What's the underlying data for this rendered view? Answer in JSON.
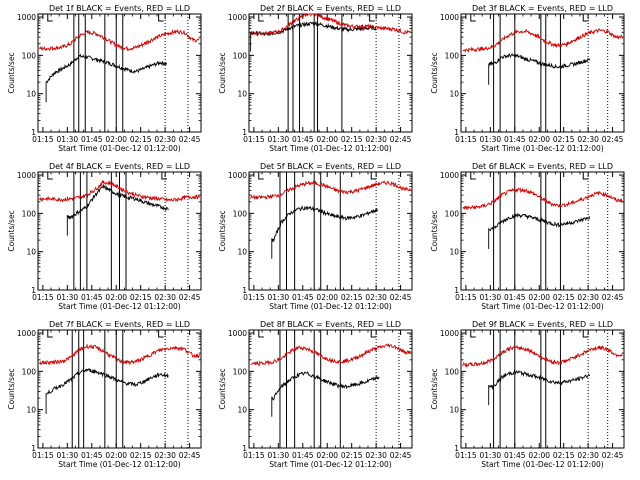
{
  "figure": {
    "colors": {
      "events": "#000000",
      "lld": "#d40000",
      "axes": "#000000",
      "dotted": "#000000"
    }
  },
  "chart_data": [
    {
      "type": "line",
      "panel": "1",
      "title": "Det 1f BLACK = Events, RED = LLD",
      "xlabel": "Start Time (01-Dec-12 01:12:00)",
      "ylabel": "Counts/sec",
      "x_tick_labels": [
        "01:15",
        "01:30",
        "01:45",
        "02:00",
        "02:15",
        "02:30",
        "02:45"
      ],
      "x_ticks_min": [
        3,
        18,
        33,
        48,
        63,
        78,
        93
      ],
      "xlim_min": [
        0,
        100
      ],
      "y_tick_labels": [
        "1",
        "10",
        "100",
        "1000"
      ],
      "yscale": "log",
      "ylim": [
        1,
        1200
      ],
      "time_min": [
        5,
        10,
        15,
        20,
        25,
        30,
        35,
        40,
        45,
        50,
        55,
        60,
        65,
        70,
        75,
        80,
        85,
        90,
        95
      ],
      "series": [
        {
          "name": "Events",
          "color": "#000000",
          "time_min_start": 5,
          "time_min_end": 79,
          "values": [
            20,
            35,
            45,
            60,
            95,
            90,
            80,
            70,
            60,
            50,
            42,
            38,
            45,
            55,
            65,
            60,
            0,
            0,
            0
          ]
        },
        {
          "name": "LLD",
          "color": "#d40000",
          "time_min_start": 1,
          "time_min_end": 99,
          "values": [
            150,
            155,
            165,
            200,
            320,
            400,
            380,
            300,
            220,
            170,
            150,
            160,
            200,
            260,
            320,
            380,
            420,
            400,
            250
          ]
        }
      ],
      "vertical_lines_min": [
        22,
        25,
        29,
        41,
        48,
        52
      ],
      "dotted_lines_min": [
        78,
        92
      ],
      "saa_marks_min": [
        6,
        74
      ]
    },
    {
      "type": "line",
      "panel": "2",
      "title": "Det 2f BLACK = Events, RED = LLD",
      "xlabel": "Start Time (01-Dec-12 01:12:00)",
      "ylabel": "Counts/sec",
      "x_tick_labels": [
        "01:15",
        "01:30",
        "01:45",
        "02:00",
        "02:15",
        "02:30",
        "02:45"
      ],
      "x_ticks_min": [
        3,
        18,
        33,
        48,
        63,
        78,
        93
      ],
      "xlim_min": [
        0,
        100
      ],
      "y_tick_labels": [
        "1",
        "10",
        "100",
        "1000"
      ],
      "yscale": "log",
      "ylim": [
        1,
        1200
      ],
      "time_min": [
        5,
        10,
        15,
        20,
        25,
        30,
        35,
        40,
        45,
        50,
        55,
        60,
        65,
        70,
        75,
        80,
        85,
        90,
        95
      ],
      "series": [
        {
          "name": "Events",
          "color": "#000000",
          "time_min_start": 1,
          "time_min_end": 78,
          "values": [
            380,
            360,
            380,
            420,
            520,
            600,
            650,
            700,
            620,
            560,
            500,
            470,
            480,
            500,
            520,
            500,
            0,
            0,
            0
          ]
        },
        {
          "name": "LLD",
          "color": "#d40000",
          "time_min_start": 1,
          "time_min_end": 99,
          "values": [
            380,
            370,
            390,
            450,
            650,
            900,
            1200,
            1250,
            1000,
            850,
            700,
            600,
            560,
            580,
            560,
            520,
            500,
            480,
            400
          ]
        }
      ],
      "vertical_lines_min": [
        24,
        27,
        31,
        40,
        42,
        57
      ],
      "dotted_lines_min": [
        78,
        92
      ],
      "saa_marks_min": [
        6,
        74
      ]
    },
    {
      "type": "line",
      "panel": "3",
      "title": "Det 3f BLACK = Events, RED = LLD",
      "xlabel": "Start Time (01-Dec-12 01:12:00)",
      "ylabel": "Counts/sec",
      "x_tick_labels": [
        "01:15",
        "01:30",
        "01:45",
        "02:00",
        "02:15",
        "02:30",
        "02:45"
      ],
      "x_ticks_min": [
        3,
        18,
        33,
        48,
        63,
        78,
        93
      ],
      "xlim_min": [
        0,
        100
      ],
      "y_tick_labels": [
        "1",
        "10",
        "100",
        "1000"
      ],
      "yscale": "log",
      "ylim": [
        1,
        1200
      ],
      "time_min": [
        5,
        10,
        15,
        20,
        25,
        30,
        35,
        40,
        45,
        50,
        55,
        60,
        65,
        70,
        75,
        80,
        85,
        90,
        95
      ],
      "series": [
        {
          "name": "Events",
          "color": "#000000",
          "time_min_start": 17,
          "time_min_end": 79,
          "values": [
            0,
            0,
            0,
            60,
            90,
            100,
            95,
            80,
            70,
            60,
            55,
            50,
            55,
            60,
            70,
            80,
            0,
            0,
            0
          ]
        },
        {
          "name": "LLD",
          "color": "#d40000",
          "time_min_start": 1,
          "time_min_end": 99,
          "values": [
            140,
            145,
            150,
            170,
            250,
            350,
            420,
            420,
            350,
            260,
            200,
            180,
            200,
            260,
            330,
            400,
            450,
            420,
            300
          ]
        }
      ],
      "vertical_lines_min": [
        20,
        24,
        33,
        49,
        52,
        61
      ],
      "dotted_lines_min": [
        78,
        90
      ],
      "saa_marks_min": [
        6,
        75
      ]
    },
    {
      "type": "line",
      "panel": "4",
      "title": "Det 4f BLACK = Events, RED = LLD",
      "xlabel": "Start Time (01-Dec-12 01:12:00)",
      "ylabel": "Counts/sec",
      "x_tick_labels": [
        "01:15",
        "01:30",
        "01:45",
        "02:00",
        "02:15",
        "02:30",
        "02:45"
      ],
      "x_ticks_min": [
        3,
        18,
        33,
        48,
        63,
        78,
        93
      ],
      "xlim_min": [
        0,
        100
      ],
      "y_tick_labels": [
        "1",
        "10",
        "100",
        "1000"
      ],
      "yscale": "log",
      "ylim": [
        1,
        1200
      ],
      "time_min": [
        5,
        10,
        15,
        20,
        25,
        30,
        35,
        40,
        45,
        50,
        55,
        60,
        65,
        70,
        75,
        80,
        85,
        90,
        95
      ],
      "series": [
        {
          "name": "Events",
          "color": "#000000",
          "time_min_start": 18,
          "time_min_end": 80,
          "values": [
            0,
            0,
            0,
            80,
            110,
            150,
            300,
            500,
            380,
            300,
            260,
            240,
            200,
            170,
            150,
            130,
            0,
            0,
            0
          ]
        },
        {
          "name": "LLD",
          "color": "#d40000",
          "time_min_start": 1,
          "time_min_end": 99,
          "values": [
            240,
            235,
            230,
            240,
            260,
            300,
            420,
            650,
            600,
            460,
            360,
            300,
            270,
            250,
            240,
            220,
            230,
            260,
            270
          ]
        }
      ],
      "vertical_lines_min": [
        22,
        26,
        30,
        45,
        50,
        54
      ],
      "dotted_lines_min": [
        78,
        92
      ],
      "saa_marks_min": [
        6,
        76
      ]
    },
    {
      "type": "line",
      "panel": "5",
      "title": "Det 5f BLACK = Events, RED = LLD",
      "xlabel": "Start Time (01-Dec-12 01:12:00)",
      "ylabel": "Counts/sec",
      "x_tick_labels": [
        "01:15",
        "01:30",
        "01:45",
        "02:00",
        "02:15",
        "02:30",
        "02:45"
      ],
      "x_ticks_min": [
        3,
        18,
        33,
        48,
        63,
        78,
        93
      ],
      "xlim_min": [
        0,
        100
      ],
      "y_tick_labels": [
        "1",
        "10",
        "100",
        "1000"
      ],
      "yscale": "log",
      "ylim": [
        1,
        1200
      ],
      "time_min": [
        5,
        10,
        15,
        20,
        25,
        30,
        35,
        40,
        45,
        50,
        55,
        60,
        65,
        70,
        75,
        80,
        85,
        90,
        95
      ],
      "series": [
        {
          "name": "Events",
          "color": "#000000",
          "time_min_start": 14,
          "time_min_end": 79,
          "values": [
            0,
            0,
            20,
            60,
            100,
            130,
            140,
            130,
            110,
            90,
            80,
            75,
            80,
            90,
            110,
            130,
            0,
            0,
            0
          ]
        },
        {
          "name": "LLD",
          "color": "#d40000",
          "time_min_start": 1,
          "time_min_end": 99,
          "values": [
            260,
            265,
            280,
            320,
            420,
            520,
            600,
            620,
            560,
            460,
            380,
            360,
            380,
            440,
            520,
            600,
            640,
            560,
            420
          ]
        }
      ],
      "vertical_lines_min": [
        19,
        23,
        28,
        40,
        44,
        56
      ],
      "dotted_lines_min": [
        78,
        92
      ],
      "saa_marks_min": [
        6,
        75
      ]
    },
    {
      "type": "line",
      "panel": "6",
      "title": "Det 6f BLACK = Events, RED = LLD",
      "xlabel": "Start Time (01-Dec-12 01:12:00)",
      "ylabel": "Counts/sec",
      "x_tick_labels": [
        "01:15",
        "01:30",
        "01:45",
        "02:00",
        "02:15",
        "02:30",
        "02:45"
      ],
      "x_ticks_min": [
        3,
        18,
        33,
        48,
        63,
        78,
        93
      ],
      "xlim_min": [
        0,
        100
      ],
      "y_tick_labels": [
        "1",
        "10",
        "100",
        "1000"
      ],
      "yscale": "log",
      "ylim": [
        1,
        1200
      ],
      "time_min": [
        5,
        10,
        15,
        20,
        25,
        30,
        35,
        40,
        45,
        50,
        55,
        60,
        65,
        70,
        75,
        80,
        85,
        90,
        95
      ],
      "series": [
        {
          "name": "Events",
          "color": "#000000",
          "time_min_start": 17,
          "time_min_end": 79,
          "values": [
            0,
            0,
            0,
            40,
            60,
            80,
            90,
            85,
            75,
            65,
            55,
            50,
            55,
            60,
            70,
            80,
            0,
            0,
            0
          ]
        },
        {
          "name": "LLD",
          "color": "#d40000",
          "time_min_start": 1,
          "time_min_end": 99,
          "values": [
            140,
            145,
            160,
            200,
            300,
            380,
            420,
            400,
            320,
            240,
            180,
            160,
            170,
            200,
            240,
            300,
            340,
            300,
            220
          ]
        }
      ],
      "vertical_lines_min": [
        20,
        24,
        33,
        49,
        52,
        61
      ],
      "dotted_lines_min": [
        78,
        90
      ],
      "saa_marks_min": [
        6,
        75
      ]
    },
    {
      "type": "line",
      "panel": "7",
      "title": "Det 7f BLACK = Events, RED = LLD",
      "xlabel": "Start Time (01-Dec-12 01:12:00)",
      "ylabel": "Counts/sec",
      "x_tick_labels": [
        "01:15",
        "01:30",
        "01:45",
        "02:00",
        "02:15",
        "02:30",
        "02:45"
      ],
      "x_ticks_min": [
        3,
        18,
        33,
        48,
        63,
        78,
        93
      ],
      "xlim_min": [
        0,
        100
      ],
      "y_tick_labels": [
        "1",
        "10",
        "100",
        "1000"
      ],
      "yscale": "log",
      "ylim": [
        1,
        1200
      ],
      "time_min": [
        5,
        10,
        15,
        20,
        25,
        30,
        35,
        40,
        45,
        50,
        55,
        60,
        65,
        70,
        75,
        80,
        85,
        90,
        95
      ],
      "series": [
        {
          "name": "Events",
          "color": "#000000",
          "time_min_start": 5,
          "time_min_end": 80,
          "values": [
            25,
            35,
            45,
            60,
            90,
            110,
            100,
            85,
            70,
            55,
            48,
            45,
            55,
            70,
            85,
            75,
            0,
            0,
            0
          ]
        },
        {
          "name": "LLD",
          "color": "#d40000",
          "time_min_start": 1,
          "time_min_end": 99,
          "values": [
            170,
            175,
            185,
            230,
            350,
            450,
            430,
            340,
            250,
            190,
            170,
            180,
            220,
            290,
            360,
            400,
            420,
            380,
            260
          ]
        }
      ],
      "vertical_lines_min": [
        21,
        25,
        28,
        41,
        48,
        52
      ],
      "dotted_lines_min": [
        78,
        92
      ],
      "saa_marks_min": [
        6,
        74
      ]
    },
    {
      "type": "line",
      "panel": "8",
      "title": "Det 8f BLACK = Events, RED = LLD",
      "xlabel": "Start Time (01-Dec-12 01:12:00)",
      "ylabel": "Counts/sec",
      "x_tick_labels": [
        "01:15",
        "01:30",
        "01:45",
        "02:00",
        "02:15",
        "02:30",
        "02:45"
      ],
      "x_ticks_min": [
        3,
        18,
        33,
        48,
        63,
        78,
        93
      ],
      "xlim_min": [
        0,
        100
      ],
      "y_tick_labels": [
        "1",
        "10",
        "100",
        "1000"
      ],
      "yscale": "log",
      "ylim": [
        1,
        1200
      ],
      "time_min": [
        5,
        10,
        15,
        20,
        25,
        30,
        35,
        40,
        45,
        50,
        55,
        60,
        65,
        70,
        75,
        80,
        85,
        90,
        95
      ],
      "series": [
        {
          "name": "Events",
          "color": "#000000",
          "time_min_start": 14,
          "time_min_end": 80,
          "values": [
            0,
            0,
            20,
            40,
            60,
            80,
            90,
            75,
            60,
            50,
            42,
            40,
            45,
            50,
            60,
            70,
            0,
            0,
            0
          ]
        },
        {
          "name": "LLD",
          "color": "#d40000",
          "time_min_start": 1,
          "time_min_end": 99,
          "values": [
            160,
            165,
            180,
            220,
            320,
            420,
            400,
            320,
            240,
            200,
            180,
            190,
            220,
            280,
            360,
            420,
            480,
            440,
            320
          ]
        }
      ],
      "vertical_lines_min": [
        19,
        23,
        28,
        40,
        44,
        56
      ],
      "dotted_lines_min": [
        78,
        92
      ],
      "saa_marks_min": [
        6,
        75
      ]
    },
    {
      "type": "line",
      "panel": "9",
      "title": "Det 9f BLACK = Events, RED = LLD",
      "xlabel": "Start Time (01-Dec-12 01:12:00)",
      "ylabel": "Counts/sec",
      "x_tick_labels": [
        "01:15",
        "01:30",
        "01:45",
        "02:00",
        "02:15",
        "02:30",
        "02:45"
      ],
      "x_ticks_min": [
        3,
        18,
        33,
        48,
        63,
        78,
        93
      ],
      "xlim_min": [
        0,
        100
      ],
      "y_tick_labels": [
        "1",
        "10",
        "100",
        "1000"
      ],
      "yscale": "log",
      "ylim": [
        1,
        1200
      ],
      "time_min": [
        5,
        10,
        15,
        20,
        25,
        30,
        35,
        40,
        45,
        50,
        55,
        60,
        65,
        70,
        75,
        80,
        85,
        90,
        95
      ],
      "series": [
        {
          "name": "Events",
          "color": "#000000",
          "time_min_start": 17,
          "time_min_end": 79,
          "values": [
            0,
            0,
            0,
            40,
            70,
            90,
            95,
            85,
            75,
            65,
            55,
            50,
            55,
            60,
            70,
            85,
            0,
            0,
            0
          ]
        },
        {
          "name": "LLD",
          "color": "#d40000",
          "time_min_start": 1,
          "time_min_end": 99,
          "values": [
            150,
            155,
            170,
            210,
            310,
            400,
            420,
            380,
            300,
            230,
            180,
            170,
            190,
            240,
            300,
            380,
            420,
            380,
            270
          ]
        }
      ],
      "vertical_lines_min": [
        20,
        24,
        33,
        49,
        52,
        61
      ],
      "dotted_lines_min": [
        78,
        90
      ],
      "saa_marks_min": [
        6,
        75
      ]
    }
  ]
}
